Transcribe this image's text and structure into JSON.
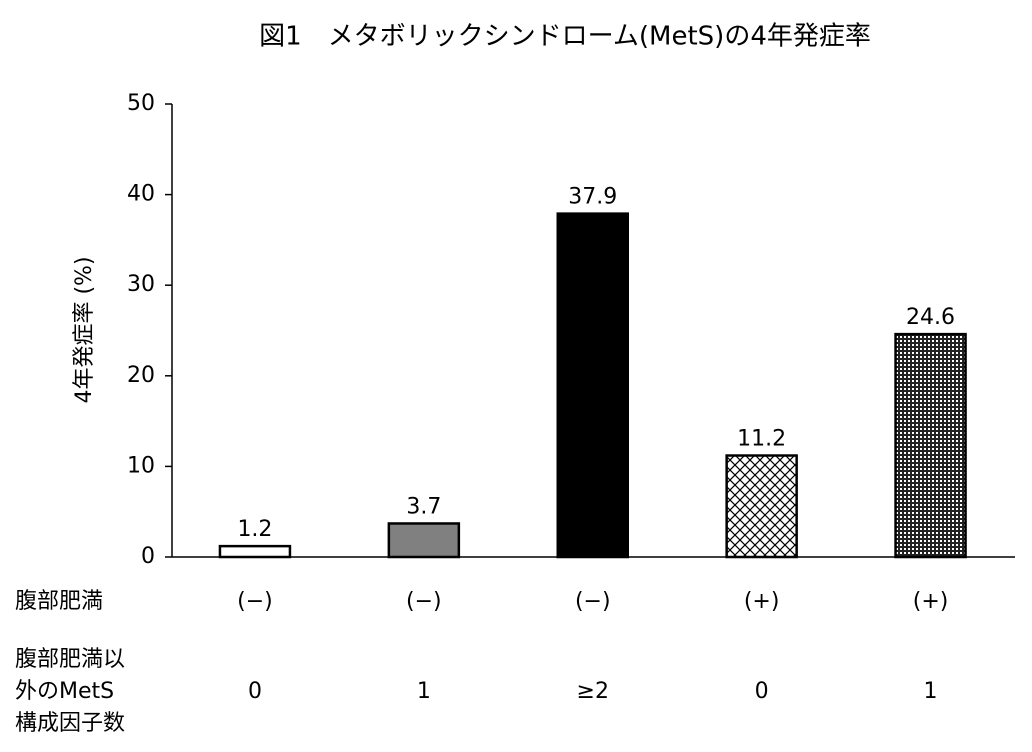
{
  "chart_data": {
    "type": "bar",
    "title": "図1　メタボリックシンドローム(MetS)の4年発症率",
    "y_label": "4年発症率 (%)",
    "values": [
      1.2,
      3.7,
      37.9,
      11.2,
      24.6
    ],
    "value_labels": [
      "1.2",
      "3.7",
      "37.9",
      "11.2",
      "24.6"
    ],
    "colors": [
      "#ffffff",
      "#808080",
      "#000000",
      "#ffffff",
      "#ffffff"
    ],
    "patterns": [
      "none",
      "none",
      "none",
      "crosshatch",
      "dense"
    ],
    "ylim": [
      0,
      50
    ],
    "yticks": [
      0,
      10,
      20,
      30,
      40,
      50
    ],
    "category_rows": [
      {
        "label_lines": [
          "腹部肥満"
        ],
        "categories": [
          "(−)",
          "(−)",
          "(−)",
          "(+)",
          "(+)"
        ]
      },
      {
        "label_lines": [
          "腹部肥満以",
          "外のMetS",
          "構成因子数"
        ],
        "categories": [
          "0",
          "1",
          "≥2",
          "0",
          "1"
        ]
      }
    ]
  }
}
